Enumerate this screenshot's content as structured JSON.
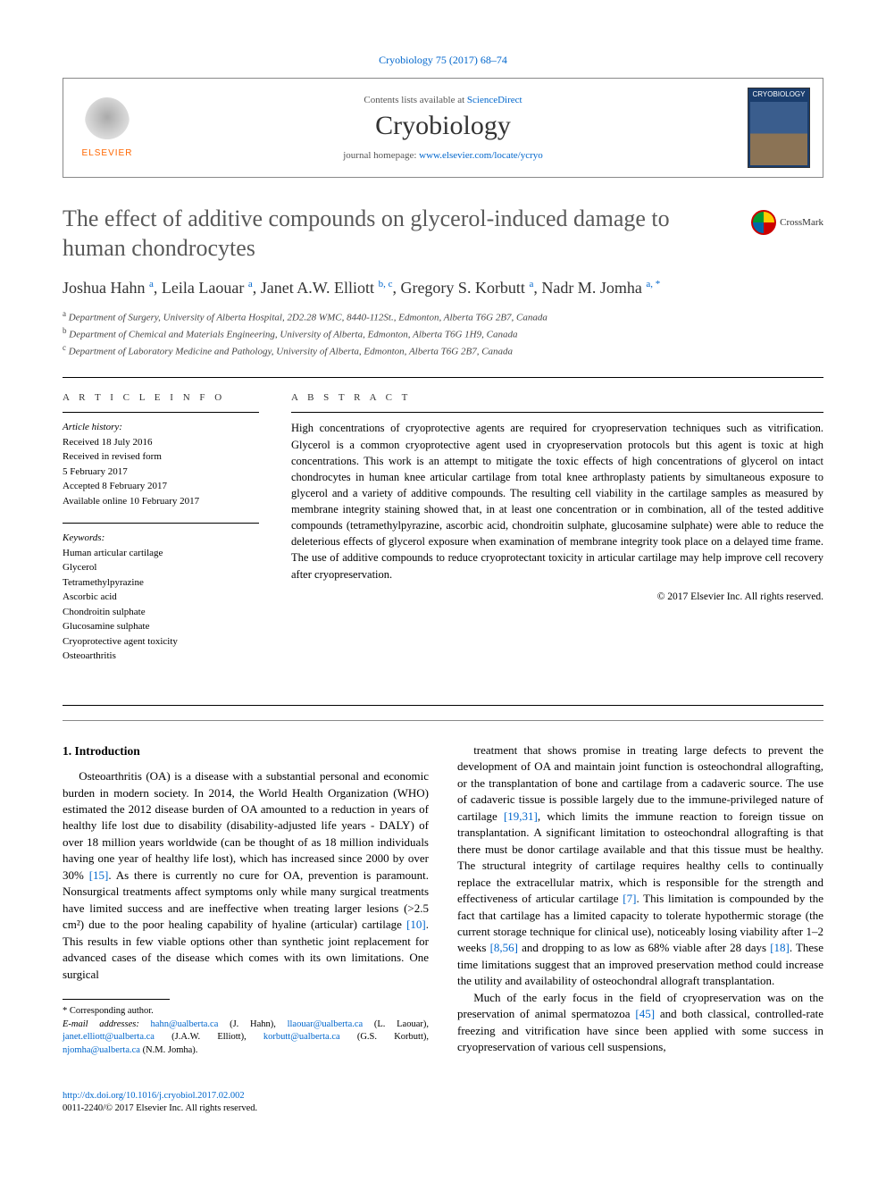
{
  "journal_ref": {
    "name": "Cryobiology",
    "vol": "75",
    "year": "2017",
    "pages": "68–74"
  },
  "header": {
    "contents_prefix": "Contents lists available at ",
    "contents_link": "ScienceDirect",
    "journal_name": "Cryobiology",
    "homepage_prefix": "journal homepage: ",
    "homepage_url": "www.elsevier.com/locate/ycryo",
    "publisher": "ELSEVIER",
    "cover_label": "CRYOBIOLOGY"
  },
  "title": "The effect of additive compounds on glycerol-induced damage to human chondrocytes",
  "crossmark_label": "CrossMark",
  "authors": [
    {
      "name": "Joshua Hahn",
      "aff": "a"
    },
    {
      "name": "Leila Laouar",
      "aff": "a"
    },
    {
      "name": "Janet A.W. Elliott",
      "aff": "b, c"
    },
    {
      "name": "Gregory S. Korbutt",
      "aff": "a"
    },
    {
      "name": "Nadr M. Jomha",
      "aff": "a, *"
    }
  ],
  "affiliations": [
    {
      "label": "a",
      "text": "Department of Surgery, University of Alberta Hospital, 2D2.28 WMC, 8440-112St., Edmonton, Alberta T6G 2B7, Canada"
    },
    {
      "label": "b",
      "text": "Department of Chemical and Materials Engineering, University of Alberta, Edmonton, Alberta T6G 1H9, Canada"
    },
    {
      "label": "c",
      "text": "Department of Laboratory Medicine and Pathology, University of Alberta, Edmonton, Alberta T6G 2B7, Canada"
    }
  ],
  "info": {
    "heading": "A R T I C L E  I N F O",
    "history_head": "Article history:",
    "history": [
      "Received 18 July 2016",
      "Received in revised form",
      "5 February 2017",
      "Accepted 8 February 2017",
      "Available online 10 February 2017"
    ],
    "keywords_head": "Keywords:",
    "keywords": [
      "Human articular cartilage",
      "Glycerol",
      "Tetramethylpyrazine",
      "Ascorbic acid",
      "Chondroitin sulphate",
      "Glucosamine sulphate",
      "Cryoprotective agent toxicity",
      "Osteoarthritis"
    ]
  },
  "abstract": {
    "heading": "A B S T R A C T",
    "text": "High concentrations of cryoprotective agents are required for cryopreservation techniques such as vitrification. Glycerol is a common cryoprotective agent used in cryopreservation protocols but this agent is toxic at high concentrations. This work is an attempt to mitigate the toxic effects of high concentrations of glycerol on intact chondrocytes in human knee articular cartilage from total knee arthroplasty patients by simultaneous exposure to glycerol and a variety of additive compounds. The resulting cell viability in the cartilage samples as measured by membrane integrity staining showed that, in at least one concentration or in combination, all of the tested additive compounds (tetramethylpyrazine, ascorbic acid, chondroitin sulphate, glucosamine sulphate) were able to reduce the deleterious effects of glycerol exposure when examination of membrane integrity took place on a delayed time frame. The use of additive compounds to reduce cryoprotectant toxicity in articular cartilage may help improve cell recovery after cryopreservation.",
    "copyright": "© 2017 Elsevier Inc. All rights reserved."
  },
  "section1": {
    "heading": "1. Introduction",
    "p1a": "Osteoarthritis (OA) is a disease with a substantial personal and economic burden in modern society. In 2014, the World Health Organization (WHO) estimated the 2012 disease burden of OA amounted to a reduction in years of healthy life lost due to disability (disability-adjusted life years - DALY) of over 18 million years worldwide (can be thought of as 18 million individuals having one year of healthy life lost), which has increased since 2000 by over 30% ",
    "c1": "[15]",
    "p1b": ". As there is currently no cure for OA, prevention is paramount. Nonsurgical treatments affect symptoms only while many surgical treatments have limited success and are ineffective when treating larger lesions (>2.5 cm²) due to the poor healing capability of hyaline (articular) cartilage ",
    "c2": "[10]",
    "p1c": ". This results in few viable options other than synthetic joint replacement for advanced cases of the disease which comes with its own limitations. One surgical",
    "p2a": "treatment that shows promise in treating large defects to prevent the development of OA and maintain joint function is osteochondral allografting, or the transplantation of bone and cartilage from a cadaveric source. The use of cadaveric tissue is possible largely due to the immune-privileged nature of cartilage ",
    "c3": "[19,31]",
    "p2b": ", which limits the immune reaction to foreign tissue on transplantation. A significant limitation to osteochondral allografting is that there must be donor cartilage available and that this tissue must be healthy. The structural integrity of cartilage requires healthy cells to continually replace the extracellular matrix, which is responsible for the strength and effectiveness of articular cartilage ",
    "c4": "[7]",
    "p2c": ". This limitation is compounded by the fact that cartilage has a limited capacity to tolerate hypothermic storage (the current storage technique for clinical use), noticeably losing viability after 1–2 weeks ",
    "c5": "[8,56]",
    "p2d": " and dropping to as low as 68% viable after 28 days ",
    "c6": "[18]",
    "p2e": ". These time limitations suggest that an improved preservation method could increase the utility and availability of osteochondral allograft transplantation.",
    "p3a": "Much of the early focus in the field of cryopreservation was on the preservation of animal spermatozoa ",
    "c7": "[45]",
    "p3b": " and both classical, controlled-rate freezing and vitrification have since been applied with some success in cryopreservation of various cell suspensions,"
  },
  "footnotes": {
    "corr": "* Corresponding author.",
    "email_label": "E-mail addresses:",
    "emails": [
      {
        "addr": "hahn@ualberta.ca",
        "who": "(J. Hahn)"
      },
      {
        "addr": "llaouar@ualberta.ca",
        "who": "(L. Laouar)"
      },
      {
        "addr": "janet.elliott@ualberta.ca",
        "who": "(J.A.W. Elliott)"
      },
      {
        "addr": "korbutt@ualberta.ca",
        "who": "(G.S. Korbutt)"
      },
      {
        "addr": "njomha@ualberta.ca",
        "who": "(N.M. Jomha)."
      }
    ]
  },
  "footer": {
    "doi": "http://dx.doi.org/10.1016/j.cryobiol.2017.02.002",
    "issn_line": "0011-2240/© 2017 Elsevier Inc. All rights reserved."
  },
  "colors": {
    "link": "#0066cc",
    "title": "#5a5a5a",
    "elsevier_orange": "#ff6600"
  }
}
